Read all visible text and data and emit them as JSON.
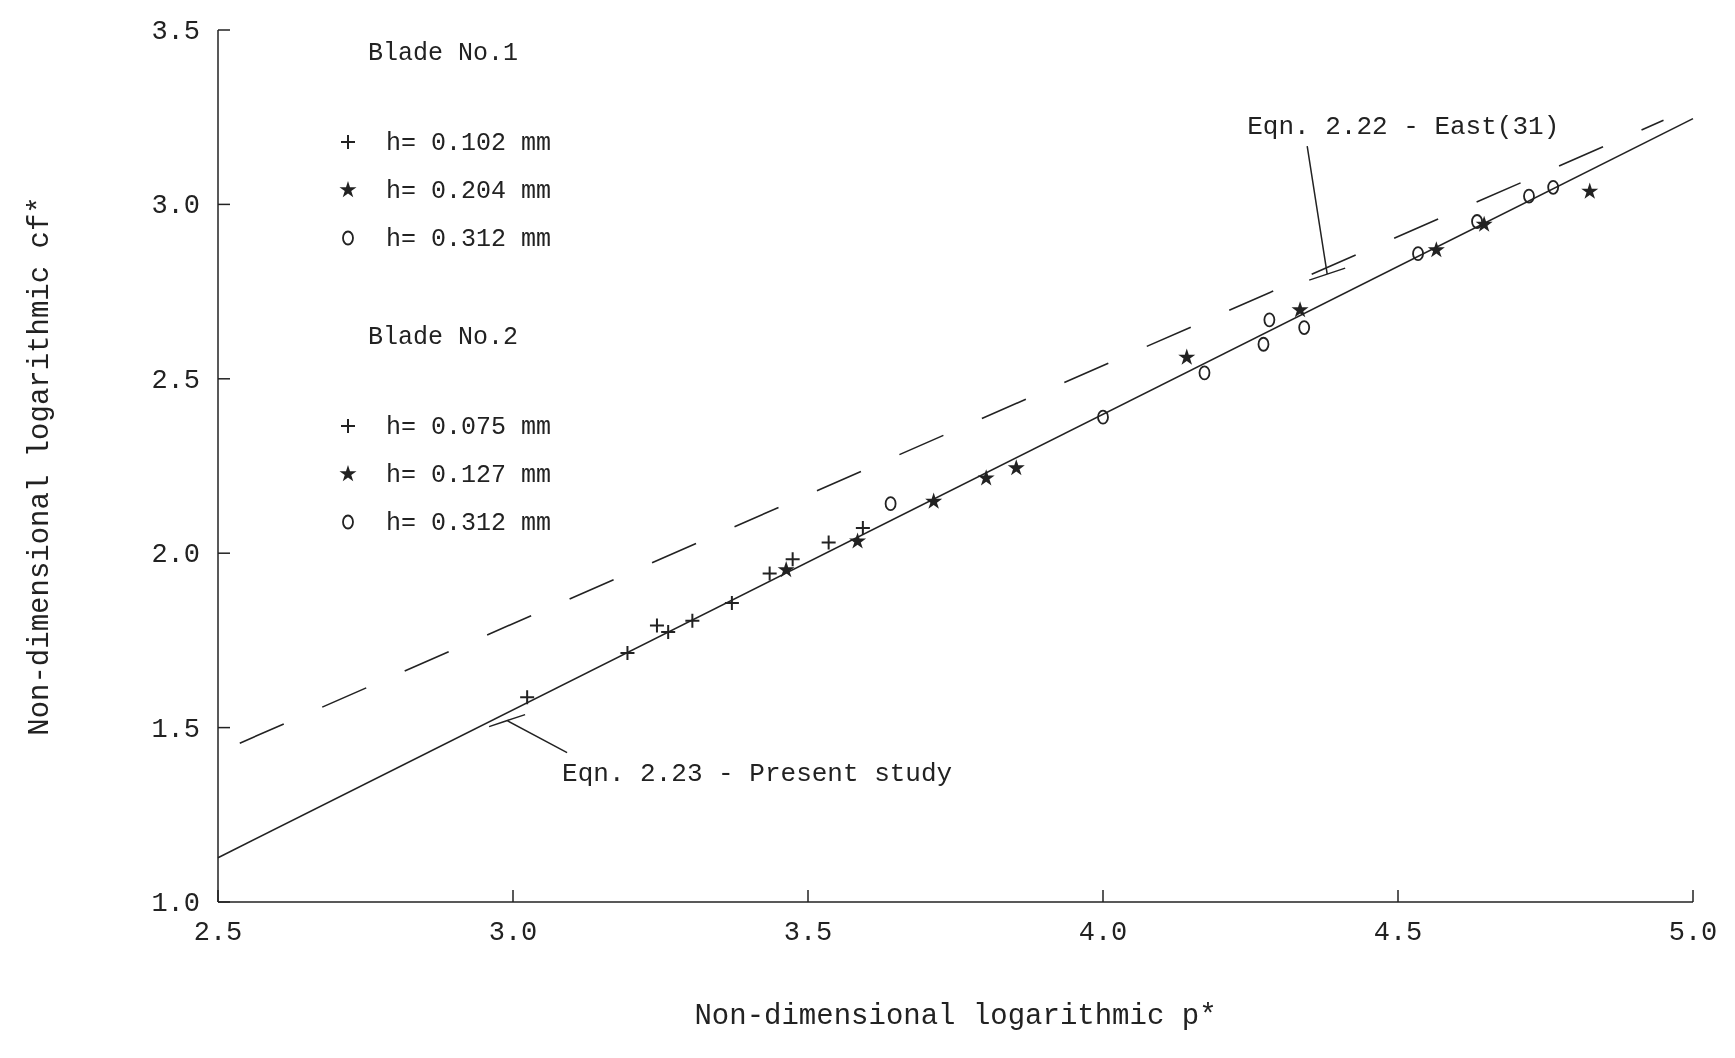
{
  "chart_data": {
    "type": "scatter",
    "xlabel": "Non-dimensional logarithmic p*",
    "ylabel": "Non-dimensional logarithmic cf*",
    "xlim": [
      2.5,
      5.0
    ],
    "ylim": [
      1.0,
      3.5
    ],
    "xticks": [
      {
        "value": 2.5,
        "label": "2.5"
      },
      {
        "value": 3,
        "label": "3.0"
      },
      {
        "value": 3.5,
        "label": "3.5"
      },
      {
        "value": 4,
        "label": "4.0"
      },
      {
        "value": 4.5,
        "label": "4.5"
      },
      {
        "value": 5,
        "label": "5.0"
      }
    ],
    "yticks": [
      {
        "value": 1,
        "label": "1.0"
      },
      {
        "value": 1.5,
        "label": "1.5"
      },
      {
        "value": 2,
        "label": "2.0"
      },
      {
        "value": 2.5,
        "label": "2.5"
      },
      {
        "value": 3,
        "label": "3.0"
      },
      {
        "value": 3.5,
        "label": "3.5"
      }
    ],
    "grid": false,
    "legend": "top left",
    "annotations": [
      "Blade No.1",
      "Blade No.2",
      {
        "text": "Eqn. 2.22 - East(31)",
        "x": 4.38,
        "y": 2.8
      },
      {
        "text": "Eqn. 2.23 - Present study",
        "x": 2.99,
        "y": 1.52
      }
    ],
    "series": [
      {
        "name": "h= 0.102 mm",
        "color": "#222222",
        "marker": "cross",
        "x": [
          3.024,
          3.194,
          3.244,
          3.263,
          3.304,
          3.371,
          3.435,
          3.474,
          3.535,
          3.593
        ],
        "values": [
          1.587,
          1.714,
          1.793,
          1.774,
          1.806,
          1.857,
          1.942,
          1.983,
          2.031,
          2.072
        ]
      },
      {
        "name": "h= 0.204 mm",
        "color": "#222222",
        "marker": "star",
        "x": [
          3.463,
          3.584,
          3.713,
          3.802,
          3.853,
          4.142,
          4.334,
          4.565,
          4.646,
          4.825
        ],
        "values": [
          1.952,
          2.034,
          2.148,
          2.215,
          2.244,
          2.561,
          2.697,
          2.869,
          2.942,
          3.037
        ]
      },
      {
        "name": "h= 0.312 mm",
        "color": "#222222",
        "marker": "circle",
        "x": [
          3.64,
          4.0,
          4.172,
          4.272,
          4.282,
          4.341,
          4.534,
          4.634,
          4.722,
          4.763
        ],
        "values": [
          2.142,
          2.39,
          2.517,
          2.599,
          2.669,
          2.647,
          2.859,
          2.951,
          3.024,
          3.049
        ]
      },
      {
        "name": "h= 0.075 mm",
        "color": "#222222",
        "marker": "cross"
      },
      {
        "name": "h= 0.127 mm",
        "color": "#222222",
        "marker": "star"
      },
      {
        "name": "h= 0.312 mm",
        "color": "#222222",
        "marker": "circle"
      },
      {
        "type": "line",
        "color": "#222222",
        "line_style": "dashed",
        "marker": "none",
        "x": [
          2.5,
          4.95
        ],
        "values": [
          1.428,
          3.241
        ]
      },
      {
        "type": "line",
        "color": "#222222",
        "line_style": "solid",
        "marker": "none",
        "x": [
          2.5,
          5.0
        ],
        "values": [
          1.127,
          3.246
        ]
      }
    ]
  }
}
